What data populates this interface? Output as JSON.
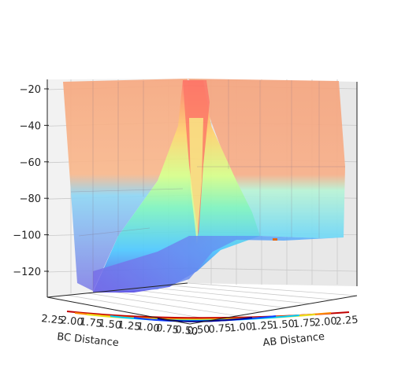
{
  "chart_data": {
    "type": "surface-3d",
    "title": "",
    "xlabel": "AB Distance",
    "ylabel": "BC Distance",
    "zlabel": "",
    "z_ticks": [
      -20,
      -40,
      -60,
      -80,
      -100,
      -120
    ],
    "x_ticks": [
      "0.50",
      "0.75",
      "1.00",
      "1.25",
      "1.50",
      "1.75",
      "2.00",
      "2.25"
    ],
    "y_ticks": [
      "2.25",
      "2.00",
      "1.75",
      "1.50",
      "1.25",
      "1.00",
      "0.75",
      "0.50"
    ],
    "colormap": "jet",
    "contour_projection_on_floor": true,
    "grid": true
  }
}
